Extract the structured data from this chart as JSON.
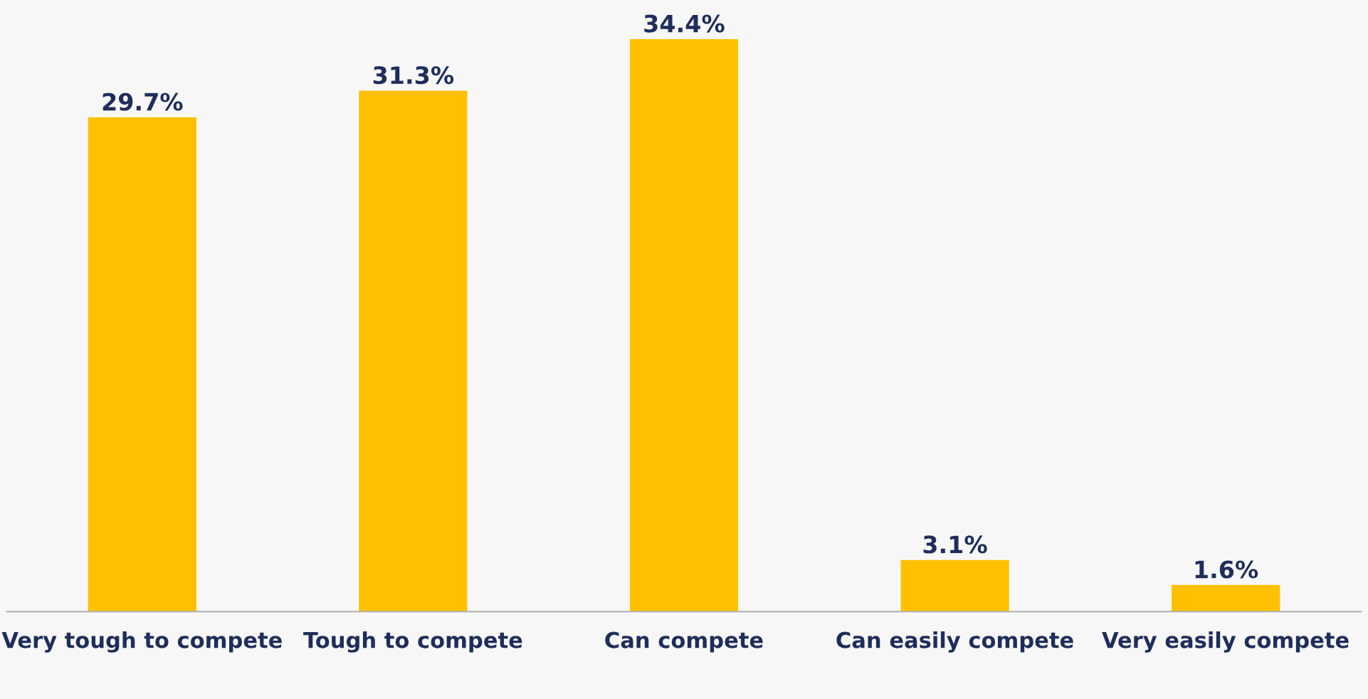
{
  "chart_data": {
    "type": "bar",
    "categories": [
      "Very tough to compete",
      "Tough to compete",
      "Can compete",
      "Can easily compete",
      "Very easily compete"
    ],
    "values": [
      29.7,
      31.3,
      34.4,
      3.1,
      1.6
    ],
    "value_labels": [
      "29.7%",
      "31.3%",
      "34.4%",
      "3.1%",
      "1.6%"
    ],
    "color": "#ffc000",
    "tick_labels": "x",
    "grid": false,
    "legend": false
  }
}
